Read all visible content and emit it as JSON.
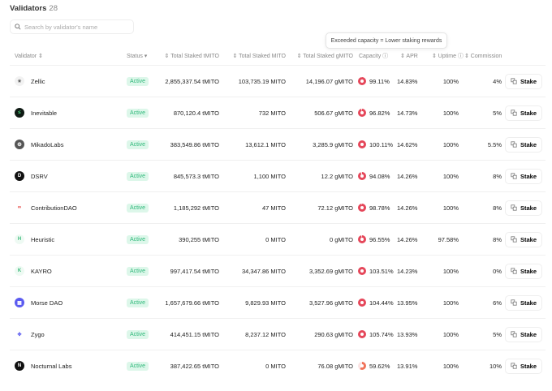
{
  "title": "Validators",
  "count": "28",
  "search": {
    "placeholder": "Search by validator's name"
  },
  "tooltip": "Exceeded capacity = Lower staking rewards",
  "headers": {
    "validator": "Validator ⇕",
    "status": "Status ▾",
    "tmito": "⇕ Total Staked tMITO",
    "mito": "⇕ Total Staked MITO",
    "gmito": "⇕ Total Staked gMITO",
    "capacity": "Capacity ⓘ",
    "apr": "⇕ APR",
    "uptime": "⇕ Uptime ⓘ",
    "commission": "⇕ Commission"
  },
  "stake_label": "Stake",
  "colors": {
    "ring_full": "#e5475a",
    "ring_partial": "#f0735a",
    "badge": "#2fb87a"
  },
  "rows": [
    {
      "name": "Zellic",
      "logo": "✷",
      "logo_bg": "#f2f2f2",
      "logo_fg": "#666",
      "status": "Active",
      "tmito": "2,855,337.54 tMITO",
      "mito": "103,735.19 MITO",
      "gmito": "14,196.07 gMITO",
      "capacity": "99.11%",
      "cap_pct": 99.11,
      "apr": "14.83%",
      "uptime": "100%",
      "commission": "4%"
    },
    {
      "name": "Inevitable",
      "logo": "≤",
      "logo_bg": "#0f1a14",
      "logo_fg": "#4ade80",
      "status": "Active",
      "tmito": "870,120.4 tMITO",
      "mito": "732 MITO",
      "gmito": "506.67 gMITO",
      "capacity": "96.82%",
      "cap_pct": 96.82,
      "apr": "14.73%",
      "uptime": "100%",
      "commission": "5%"
    },
    {
      "name": "MikadoLabs",
      "logo": "❂",
      "logo_bg": "#555",
      "logo_fg": "#eee",
      "status": "Active",
      "tmito": "383,549.86 tMITO",
      "mito": "13,612.1 MITO",
      "gmito": "3,285.9 gMITO",
      "capacity": "100.11%",
      "cap_pct": 100.11,
      "apr": "14.62%",
      "uptime": "100%",
      "commission": "5.5%"
    },
    {
      "name": "DSRV",
      "logo": "D",
      "logo_bg": "#111",
      "logo_fg": "#fff",
      "status": "Active",
      "tmito": "845,573.3 tMITO",
      "mito": "1,100 MITO",
      "gmito": "12.2 gMITO",
      "capacity": "94.08%",
      "cap_pct": 94.08,
      "apr": "14.26%",
      "uptime": "100%",
      "commission": "8%"
    },
    {
      "name": "ContributionDAO",
      "logo": "∞",
      "logo_bg": "#fff",
      "logo_fg": "#e53935",
      "status": "Active",
      "tmito": "1,185,292 tMITO",
      "mito": "47 MITO",
      "gmito": "72.12 gMITO",
      "capacity": "98.78%",
      "cap_pct": 98.78,
      "apr": "14.26%",
      "uptime": "100%",
      "commission": "8%"
    },
    {
      "name": "Heuristic",
      "logo": "H",
      "logo_bg": "#eefaf3",
      "logo_fg": "#3dbb7c",
      "status": "Active",
      "tmito": "390,255 tMITO",
      "mito": "0 MITO",
      "gmito": "0 gMITO",
      "capacity": "96.55%",
      "cap_pct": 96.55,
      "apr": "14.26%",
      "uptime": "97.58%",
      "commission": "8%"
    },
    {
      "name": "KAYRO",
      "logo": "K",
      "logo_bg": "#eefaf3",
      "logo_fg": "#3dbb7c",
      "status": "Active",
      "tmito": "997,417.54 tMITO",
      "mito": "34,347.86 MITO",
      "gmito": "3,352.69 gMITO",
      "capacity": "103.51%",
      "cap_pct": 103.51,
      "apr": "14.23%",
      "uptime": "100%",
      "commission": "0%"
    },
    {
      "name": "Morse DAO",
      "logo": "▦",
      "logo_bg": "#5b5bf0",
      "logo_fg": "#fff",
      "status": "Active",
      "tmito": "1,657,679.66 tMITO",
      "mito": "9,829.93 MITO",
      "gmito": "3,527.96 gMITO",
      "capacity": "104.44%",
      "cap_pct": 104.44,
      "apr": "13.95%",
      "uptime": "100%",
      "commission": "6%"
    },
    {
      "name": "Zygo",
      "logo": "✤",
      "logo_bg": "#fff",
      "logo_fg": "#5b5bf0",
      "status": "Active",
      "tmito": "414,451.15 tMITO",
      "mito": "8,237.12 MITO",
      "gmito": "290.63 gMITO",
      "capacity": "105.74%",
      "cap_pct": 105.74,
      "apr": "13.93%",
      "uptime": "100%",
      "commission": "5%"
    },
    {
      "name": "Nocturnal Labs",
      "logo": "N",
      "logo_bg": "#111",
      "logo_fg": "#fff",
      "status": "Active",
      "tmito": "387,422.65 tMITO",
      "mito": "0 MITO",
      "gmito": "76.08 gMITO",
      "capacity": "59.62%",
      "cap_pct": 59.62,
      "apr": "13.91%",
      "uptime": "100%",
      "commission": "10%"
    }
  ]
}
